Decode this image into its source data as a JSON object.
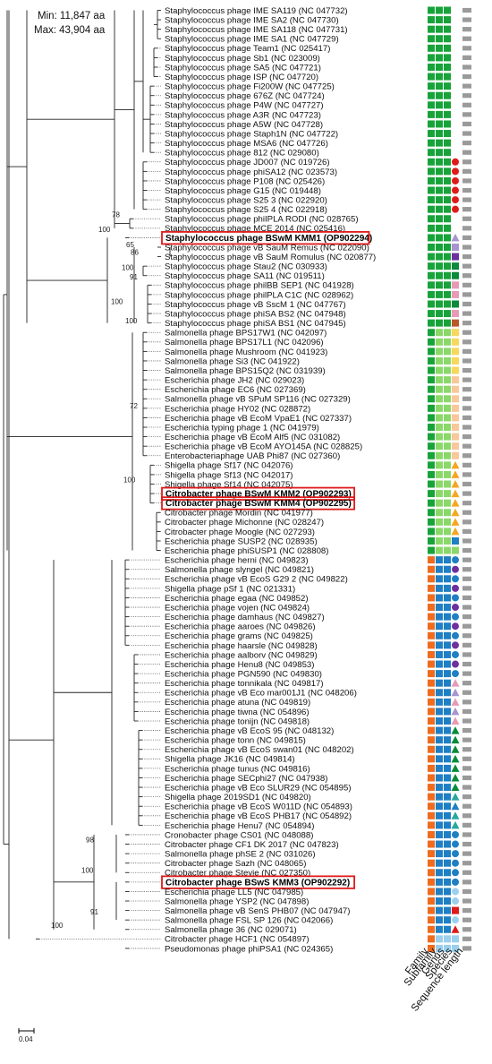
{
  "info": {
    "min": "Min: 11,847 aa",
    "max": "Max: 43,904 aa"
  },
  "scale_label": "0.04",
  "columns": [
    "Family",
    "Subfamily",
    "Genus",
    "Species",
    "Sequence length"
  ],
  "colors": {
    "orange": "#ef6c1f",
    "green": "#18a33a",
    "lightgreen": "#8bd86a",
    "blue": "#1f7fc4",
    "lightblue": "#9ad0ee",
    "red": "#e01a1a",
    "grey": "#9a9a9a",
    "purple": "#6e2fa0",
    "pink": "#e79ab5",
    "dkgreen": "#0a8a3a",
    "lavender": "#a895cf",
    "brown": "#b85a2a",
    "yellow": "#f6d85c",
    "amber": "#f5a623",
    "peach": "#f8c79a",
    "teal": "#29a7a0"
  },
  "taxa": [
    "Staphylococcus phage IME SA119 (NC 047732)",
    "Staphylococcus phage IME SA2 (NC 047730)",
    "Staphylococcus phage IME SA118 (NC 047731)",
    "Staphylococcus phage IME SA1 (NC 047729)",
    "Staphylococcus phage Team1 (NC 025417)",
    "Staphylococcus phage Sb1 (NC 023009)",
    "Staphylococcus phage SA5 (NC 047721)",
    "Staphylococcus phage ISP (NC 047720)",
    "Staphylococcus phage Fi200W (NC 047725)",
    "Staphylococcus phage 676Z (NC 047724)",
    "Staphylococcus phage P4W (NC 047727)",
    "Staphylococcus phage A3R (NC 047723)",
    "Staphylococcus phage A5W (NC 047728)",
    "Staphylococcus phage Staph1N (NC 047722)",
    "Staphylococcus phage MSA6 (NC 047726)",
    "Staphylococcus phage 812 (NC 029080)",
    "Staphylococcus phage JD007 (NC 019726)",
    "Staphylococcus phage phiSA12 (NC 023573)",
    "Staphylococcus phage P108 (NC 025426)",
    "Staphylococcus phage G15 (NC 019448)",
    "Staphylococcus phage S25 3 (NC 022920)",
    "Staphylococcus phage S25 4 (NC 022918)",
    "Staphylococcus phage phiIPLA RODI (NC 028765)",
    "Staphylococcus phage MCE 2014 (NC 025416)",
    "Staphylococcus phage BSwM KMM1 (OP902294)",
    "Staphylococcus phage vB SauM Remus (NC 022090)",
    "Staphylococcus phage vB SauM Romulus (NC 020877)",
    "Staphylococcus phage Stau2 (NC 030933)",
    "Staphylococcus phage SA11 (NC 019511)",
    "Staphylococcus phage philBB SEP1 (NC 041928)",
    "Staphylococcus phage philPLA C1C (NC 028962)",
    "Staphylococcus phage vB SscM 1 (NC 047767)",
    "Staphylococcus phage phiSA BS2 (NC 047948)",
    "Staphylococcus phage phiSA BS1 (NC 047945)",
    "Salmonella phage BPS17W1 (NC 042097)",
    "Salmonella phage BPS17L1 (NC 042096)",
    "Salmonella phage Mushroom (NC 041923)",
    "Salmonella phage Si3 (NC 041922)",
    "Salmonella phage BPS15Q2 (NC 031939)",
    "Escherichia phage JH2 (NC 029023)",
    "Escherichia phage EC6 (NC 027369)",
    "Salmonella phage vB SPuM SP116 (NC 027329)",
    "Escherichia phage HY02 (NC 028872)",
    "Escherichia phage vB EcoM VpaE1 (NC 027337)",
    "Escherichia typing phage 1 (NC 041979)",
    "Escherichia phage vB EcoM Alf5 (NC 031082)",
    "Escherichia phage vB EcoM AYO145A (NC 028825)",
    "Enterobacteriaphage UAB Phi87 (NC 027360)",
    "Shigella phage Sf17 (NC 042076)",
    "Shigella phage Sf13 (NC 042017)",
    "Shigella phage Sf14 (NC 042075)",
    "Citrobacter phage BSwM KMM2 (OP902293)",
    "Citrobacter phage BSwM KMM4 (OP902295)",
    "Citrobacter phage Mordin (NC 041977)",
    "Citrobacter phage Michonne (NC 028247)",
    "Citrobacter phage Moogle (NC 027293)",
    "Escherichia phage SUSP2 (NC 028935)",
    "Escherichia phage phiSUSP1 (NC 028808)",
    "Escherichia phage herni (NC 049823)",
    "Salmonella phage slyngel (NC 049821)",
    "Escherichia phage vB EcoS G29 2 (NC 049822)",
    "Shigella phage pSf 1 (NC 021331)",
    "Escherichia phage egaa (NC 049852)",
    "Escherichia phage vojen (NC 049824)",
    "Escherichia phage damhaus (NC 049827)",
    "Escherichia phage aaroes (NC 049826)",
    "Escherichia phage grams (NC 049825)",
    "Escherichia phage haarsle (NC 049828)",
    "Escherichia phage aalborv (NC 049829)",
    "Escherichia phage Henu8 (NC 049853)",
    "Escherichia phage PGN590 (NC 049830)",
    "Escherichia phage tonnikala (NC 049817)",
    "Escherichia phage vB Eco mar001J1 (NC 048206)",
    "Escherichia phage atuna (NC 049819)",
    "Escherichia phage tiwna (NC 054896)",
    "Escherichia phage tonijn (NC 049818)",
    "Escherichia phage vB EcoS 95 (NC 048132)",
    "Escherichia phage tonn (NC 049815)",
    "Escherichia phage vB EcoS swan01 (NC 048202)",
    "Shigella phage JK16 (NC 049814)",
    "Escherichia phage tunus (NC 049816)",
    "Escherichia phage SECphi27 (NC 047938)",
    "Escherichia phage vB Eco SLUR29 (NC 054895)",
    "Shigella phage 2019SD1 (NC 049820)",
    "Escherichia phage vB EcoS W011D (NC 054893)",
    "Escherichia phage vB EcoS PHB17 (NC 054892)",
    "Escherichia phage Henu7 (NC 054894)",
    "Cronobacter phage CS01 (NC 048088)",
    "Citrobacter phage CF1 DK 2017 (NC 047823)",
    "Salmonella phage phSE 2 (NC 031026)",
    "Citrobacter phage Sazh (NC 048065)",
    "Citrobacter phage Stevie (NC 027350)",
    "Citrobacter phage BSwS KMM3 (OP902292)",
    "Escherichia phage LL5 (NC 047985)",
    "Salmonella phage YSP2 (NC 047898)",
    "Salmonella phage vB SenS PHB07 (NC 047947)",
    "Salmonella phage FSL SP 126 (NC 042066)",
    "Salmonella phage 36 (NC 029071)",
    "Citrobacter phage HCF1 (NC 054897)",
    "Pseudomonas phage phiPSA1 (NC 024365)"
  ],
  "highlighted": [
    24,
    51,
    52,
    92
  ],
  "bootstrap": [
    {
      "text": "78",
      "row": 22.0,
      "dx": -3
    },
    {
      "text": "100",
      "row": 23.6,
      "dx": -18
    },
    {
      "text": "65",
      "row": 25.2,
      "dx": -9
    },
    {
      "text": "86",
      "row": 26.0,
      "dx": -4
    },
    {
      "text": "100",
      "row": 27.6,
      "dx": -14
    },
    {
      "text": "91",
      "row": 28.6,
      "dx": -5
    },
    {
      "text": "100",
      "row": 31.2,
      "dx": -26
    },
    {
      "text": "100",
      "row": 33.2,
      "dx": -10
    },
    {
      "text": "72",
      "row": 42.2,
      "dx": -3
    },
    {
      "text": "100",
      "row": 50.0,
      "dx": -10
    },
    {
      "text": "98",
      "row": 88.0,
      "dx": -9
    },
    {
      "text": "100",
      "row": 91.2,
      "dx": -14
    },
    {
      "text": "91",
      "row": 95.6,
      "dx": -4
    },
    {
      "text": "100",
      "row": 97.0,
      "dx": -48
    }
  ]
}
